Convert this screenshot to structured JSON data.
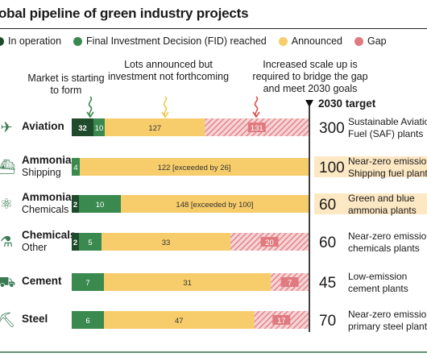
{
  "title": "obal pipeline of green industry projects",
  "legend": [
    {
      "label": "In operation",
      "color": "#1f4a2b"
    },
    {
      "label": "Final Investment Decision (FID) reached",
      "color": "#3a8a4f"
    },
    {
      "label": "Announced",
      "color": "#f7cd6b"
    },
    {
      "label": "Gap",
      "color": "#e07a80"
    }
  ],
  "annotations": {
    "market": "Market is starting\nto form",
    "lots": "Lots announced but\ninvestment not forthcoming",
    "scale": "Increased scale up is\nrequired to bridge the gap\nand meet 2030 goals"
  },
  "target_header": "2030 target",
  "colors": {
    "in_operation": "#1f4a2b",
    "fid": "#3a8a4f",
    "announced": "#f7cd6b",
    "gap": "#e07a80",
    "highlight": "#fde8c4",
    "arrow": "#3a8a4f",
    "arrow_mid": "#f2c94c",
    "arrow_gap": "#d9534f"
  },
  "chart_data": {
    "type": "bar",
    "orientation": "horizontal",
    "stacked": true,
    "categories": [
      "Aviation",
      "Ammonia",
      "Ammonia",
      "Chemicals",
      "Cement",
      "Steel"
    ],
    "subcategories": [
      "",
      "Shipping",
      "Chemicals",
      "Other",
      "",
      ""
    ],
    "icons": [
      "airplane-icon",
      "ship-icon",
      "molecule-icon",
      "flask-icon",
      "cement-mixer-icon",
      "steel-ladle-icon"
    ],
    "series": [
      {
        "name": "In operation",
        "values": [
          32,
          0,
          2,
          2,
          0,
          0
        ]
      },
      {
        "name": "Final Investment Decision (FID) reached",
        "values": [
          10,
          4,
          10,
          5,
          7,
          6
        ]
      },
      {
        "name": "Announced",
        "values": [
          127,
          122,
          148,
          33,
          31,
          47
        ]
      },
      {
        "name": "Gap",
        "values": [
          131,
          0,
          0,
          20,
          7,
          17
        ]
      }
    ],
    "announced_labels": [
      "127",
      "122 [exceeded by 26]",
      "148 [exceeded by 100]",
      "33",
      "31",
      "47"
    ],
    "targets": [
      300,
      100,
      60,
      60,
      45,
      70
    ],
    "target_descriptions": [
      "Sustainable Aviation\nFuel (SAF) plants",
      "Near-zero emission\nShipping fuel plants",
      "Green and blue\nammonia plants",
      "Near-zero emission\nchemicals plants",
      "Low-emission\ncement plants",
      "Near-zero emission\nprimary steel plants"
    ],
    "target_exceeded": [
      false,
      true,
      true,
      false,
      false,
      false
    ]
  }
}
